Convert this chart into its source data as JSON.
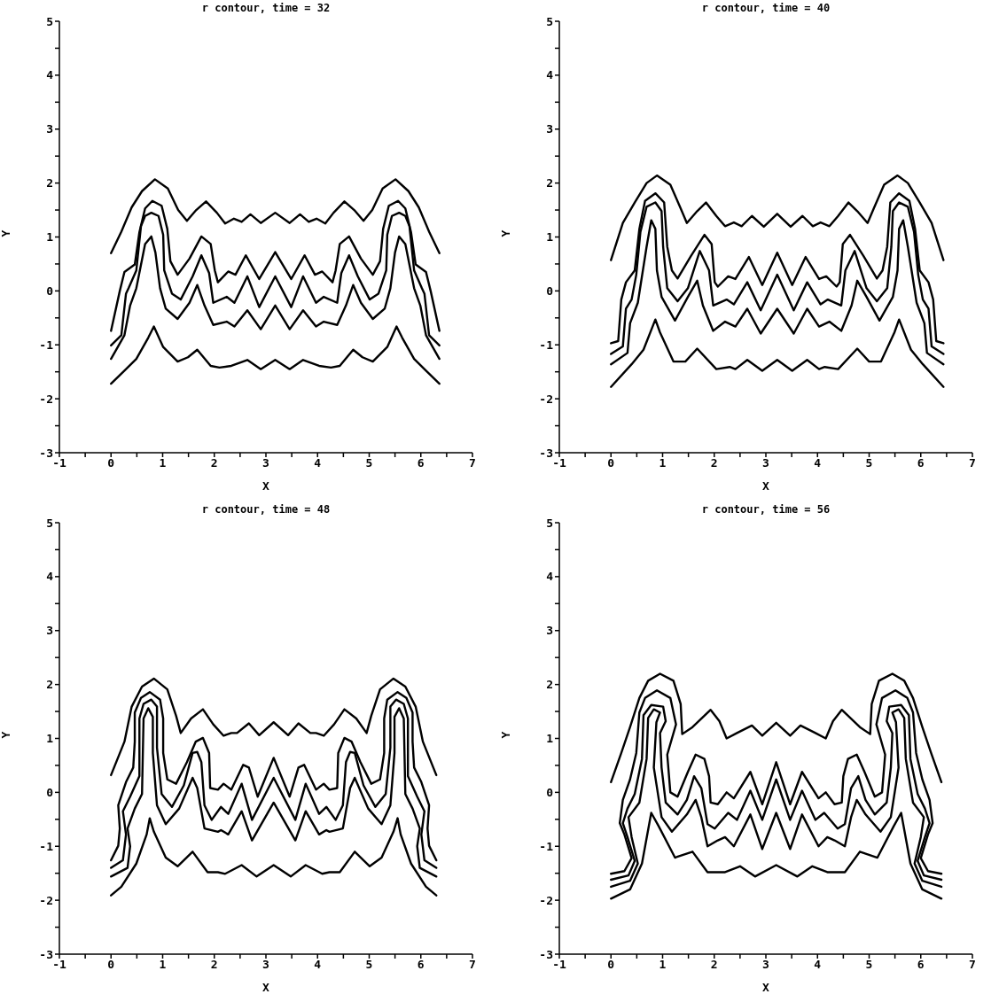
{
  "chart_data": [
    {
      "type": "line",
      "title": "r contour, time = 32",
      "xlabel": "X",
      "ylabel": "Y",
      "xlim": [
        -1,
        7
      ],
      "ylim": [
        -3,
        5
      ],
      "xticks": [
        -1,
        {
          "value": -0.5,
          "label": null
        },
        0,
        {
          "value": 0.5,
          "label": null
        },
        1,
        {
          "value": 1.5,
          "label": null
        },
        2,
        {
          "value": 2.5,
          "label": null
        },
        3,
        {
          "value": 3.5,
          "label": null
        },
        4,
        {
          "value": 4.5,
          "label": null
        },
        5,
        {
          "value": 5.5,
          "label": null
        },
        6,
        {
          "value": 6.5,
          "label": null
        },
        7
      ],
      "yticks": [
        -3,
        {
          "value": -2.5,
          "label": null
        },
        -2,
        {
          "value": -1.5,
          "label": null
        },
        -1,
        {
          "value": -0.5,
          "label": null
        },
        0,
        {
          "value": 0.5,
          "label": null
        },
        1,
        {
          "value": 1.5,
          "label": null
        },
        2,
        {
          "value": 2.5,
          "label": null
        },
        3,
        {
          "value": 3.5,
          "label": null
        },
        4,
        {
          "value": 4.5,
          "label": null
        },
        5
      ],
      "series": [
        {
          "color": "#000000",
          "x": [
            0,
            0.2,
            0.4,
            0.6,
            0.85,
            1.1,
            1.3,
            1.47,
            1.65,
            1.84,
            2.05,
            2.21,
            2.38,
            2.53,
            2.7,
            2.9,
            3.18,
            3.46,
            3.66,
            3.83,
            3.98,
            4.15,
            4.31,
            4.52,
            4.71,
            4.89,
            5.06,
            5.26,
            5.51,
            5.76,
            5.96,
            6.16,
            6.36
          ],
          "values": [
            0.7,
            1.1,
            1.55,
            1.85,
            2.07,
            1.9,
            1.5,
            1.3,
            1.5,
            1.66,
            1.45,
            1.25,
            1.34,
            1.28,
            1.42,
            1.26,
            1.45,
            1.26,
            1.42,
            1.28,
            1.34,
            1.25,
            1.45,
            1.66,
            1.5,
            1.3,
            1.5,
            1.9,
            2.07,
            1.85,
            1.55,
            1.1,
            0.7
          ]
        },
        {
          "color": "#000000",
          "x": [
            0,
            0.17,
            0.26,
            0.46,
            0.55,
            0.66,
            0.8,
            0.98,
            1.09,
            1.15,
            1.29,
            1.52,
            1.75,
            1.93,
            2.01,
            2.07,
            2.27,
            2.41,
            2.61,
            2.87,
            3.18,
            3.49,
            3.75,
            3.95,
            4.09,
            4.29,
            4.35,
            4.43,
            4.61,
            4.84,
            5.07,
            5.21,
            5.27,
            5.38,
            5.56,
            5.7,
            5.81,
            5.9,
            6.1,
            6.19,
            6.36
          ],
          "values": [
            -0.74,
            0,
            0.35,
            0.49,
            1.09,
            1.53,
            1.67,
            1.58,
            1.15,
            0.55,
            0.3,
            0.6,
            1.01,
            0.87,
            0.38,
            0.16,
            0.36,
            0.3,
            0.66,
            0.22,
            0.72,
            0.22,
            0.66,
            0.3,
            0.36,
            0.16,
            0.38,
            0.87,
            1.01,
            0.6,
            0.3,
            0.55,
            1.15,
            1.58,
            1.67,
            1.53,
            1.09,
            0.49,
            0.35,
            0,
            -0.74
          ]
        },
        {
          "color": "#000000",
          "x": [
            0,
            0.2,
            0.29,
            0.34,
            0.49,
            0.58,
            0.66,
            0.78,
            0.92,
            1.01,
            1.03,
            1.18,
            1.35,
            1.58,
            1.75,
            1.9,
            1.98,
            2.24,
            2.39,
            2.64,
            2.87,
            3.18,
            3.49,
            3.72,
            3.97,
            4.12,
            4.38,
            4.46,
            4.61,
            4.78,
            5.01,
            5.18,
            5.33,
            5.35,
            5.44,
            5.58,
            5.7,
            5.78,
            5.87,
            6.02,
            6.07,
            6.16,
            6.36
          ],
          "values": [
            -1.01,
            -0.82,
            -0.05,
            0.05,
            0.38,
            1.2,
            1.39,
            1.45,
            1.39,
            1.04,
            0.38,
            -0.05,
            -0.16,
            0.27,
            0.66,
            0.33,
            -0.22,
            -0.11,
            -0.22,
            0.27,
            -0.3,
            0.27,
            -0.3,
            0.27,
            -0.22,
            -0.11,
            -0.22,
            0.33,
            0.66,
            0.27,
            -0.16,
            -0.05,
            0.38,
            1.04,
            1.39,
            1.45,
            1.39,
            1.2,
            0.38,
            0.05,
            -0.05,
            -0.82,
            -1.01
          ]
        },
        {
          "color": "#000000",
          "x": [
            0,
            0.26,
            0.37,
            0.49,
            0.66,
            0.78,
            0.86,
            0.95,
            1.06,
            1.29,
            1.52,
            1.67,
            1.81,
            1.98,
            2.24,
            2.39,
            2.64,
            2.9,
            3.18,
            3.46,
            3.72,
            3.97,
            4.12,
            4.38,
            4.55,
            4.69,
            4.84,
            5.07,
            5.3,
            5.41,
            5.5,
            5.58,
            5.7,
            5.87,
            5.99,
            6.1,
            6.36
          ],
          "values": [
            -1.26,
            -0.82,
            -0.27,
            0.05,
            0.87,
            1.01,
            0.71,
            0.05,
            -0.33,
            -0.52,
            -0.22,
            0.11,
            -0.27,
            -0.63,
            -0.57,
            -0.66,
            -0.36,
            -0.71,
            -0.27,
            -0.71,
            -0.36,
            -0.66,
            -0.57,
            -0.63,
            -0.27,
            0.11,
            -0.22,
            -0.52,
            -0.33,
            0.05,
            0.71,
            1.01,
            0.87,
            0.05,
            -0.27,
            -0.82,
            -1.26
          ]
        },
        {
          "color": "#000000",
          "x": [
            0,
            0.26,
            0.49,
            0.72,
            0.83,
            1.01,
            1.29,
            1.49,
            1.67,
            1.93,
            2.1,
            2.33,
            2.64,
            2.9,
            3.18,
            3.46,
            3.72,
            4.03,
            4.26,
            4.43,
            4.69,
            4.87,
            5.07,
            5.35,
            5.53,
            5.64,
            5.87,
            6.1,
            6.36
          ],
          "values": [
            -1.72,
            -1.48,
            -1.26,
            -0.87,
            -0.66,
            -1.04,
            -1.31,
            -1.23,
            -1.09,
            -1.39,
            -1.42,
            -1.39,
            -1.28,
            -1.45,
            -1.28,
            -1.45,
            -1.28,
            -1.39,
            -1.42,
            -1.39,
            -1.09,
            -1.23,
            -1.31,
            -1.04,
            -0.66,
            -0.87,
            -1.26,
            -1.48,
            -1.72
          ]
        }
      ]
    },
    {
      "type": "line",
      "title": "r contour, time = 40",
      "xlabel": "X",
      "ylabel": "Y",
      "xlim": [
        -1,
        7
      ],
      "ylim": [
        -3,
        5
      ],
      "xticks": [
        -1,
        {
          "value": -0.5,
          "label": null
        },
        0,
        {
          "value": 0.5,
          "label": null
        },
        1,
        {
          "value": 1.5,
          "label": null
        },
        2,
        {
          "value": 2.5,
          "label": null
        },
        3,
        {
          "value": 3.5,
          "label": null
        },
        4,
        {
          "value": 4.5,
          "label": null
        },
        5,
        {
          "value": 5.5,
          "label": null
        },
        6,
        {
          "value": 6.5,
          "label": null
        },
        7
      ],
      "yticks": [
        -3,
        {
          "value": -2.5,
          "label": null
        },
        -2,
        {
          "value": -1.5,
          "label": null
        },
        -1,
        {
          "value": -0.5,
          "label": null
        },
        0,
        {
          "value": 0.5,
          "label": null
        },
        1,
        {
          "value": 1.5,
          "label": null
        },
        2,
        {
          "value": 2.5,
          "label": null
        },
        3,
        {
          "value": 3.5,
          "label": null
        },
        4,
        {
          "value": 4.5,
          "label": null
        },
        5
      ],
      "series": [
        {
          "color": "#000000",
          "x": [
            0,
            0.23,
            0.46,
            0.69,
            0.89,
            1.15,
            1.35,
            1.47,
            1.67,
            1.84,
            2.04,
            2.21,
            2.38,
            2.53,
            2.73,
            2.96,
            3.22,
            3.48,
            3.71,
            3.91,
            4.06,
            4.23,
            4.4,
            4.6,
            4.77,
            4.97,
            5.09,
            5.29,
            5.55,
            5.75,
            5.98,
            6.21,
            6.44
          ],
          "values": [
            0.57,
            1.26,
            1.64,
            2,
            2.14,
            1.97,
            1.53,
            1.26,
            1.48,
            1.64,
            1.39,
            1.2,
            1.27,
            1.2,
            1.39,
            1.19,
            1.43,
            1.19,
            1.39,
            1.2,
            1.27,
            1.2,
            1.39,
            1.64,
            1.48,
            1.26,
            1.53,
            1.97,
            2.14,
            2,
            1.64,
            1.26,
            0.57
          ]
        },
        {
          "color": "#000000",
          "x": [
            0,
            0.14,
            0.2,
            0.29,
            0.46,
            0.55,
            0.66,
            0.86,
            1.03,
            1.09,
            1.18,
            1.29,
            1.55,
            1.81,
            1.95,
            2.01,
            2.07,
            2.27,
            2.41,
            2.67,
            2.93,
            3.22,
            3.51,
            3.77,
            4.03,
            4.17,
            4.37,
            4.43,
            4.49,
            4.63,
            4.89,
            5.15,
            5.26,
            5.35,
            5.41,
            5.58,
            5.78,
            5.89,
            5.98,
            6.15,
            6.24,
            6.3,
            6.44
          ],
          "values": [
            -0.97,
            -0.93,
            -0.16,
            0.16,
            0.38,
            1.15,
            1.67,
            1.81,
            1.64,
            0.82,
            0.38,
            0.23,
            0.65,
            1.04,
            0.87,
            0.16,
            0.08,
            0.27,
            0.22,
            0.63,
            0.11,
            0.71,
            0.11,
            0.63,
            0.22,
            0.27,
            0.08,
            0.16,
            0.87,
            1.04,
            0.65,
            0.23,
            0.38,
            0.82,
            1.64,
            1.81,
            1.67,
            1.15,
            0.38,
            0.16,
            -0.16,
            -0.93,
            -0.97
          ]
        },
        {
          "color": "#000000",
          "x": [
            0,
            0.23,
            0.29,
            0.4,
            0.49,
            0.57,
            0.69,
            0.86,
            0.98,
            1.01,
            1.09,
            1.29,
            1.49,
            1.72,
            1.9,
            1.98,
            2.24,
            2.38,
            2.64,
            2.9,
            3.22,
            3.54,
            3.8,
            4.06,
            4.2,
            4.46,
            4.54,
            4.72,
            4.95,
            5.15,
            5.35,
            5.43,
            5.46,
            5.58,
            5.75,
            5.87,
            5.95,
            6.04,
            6.15,
            6.21,
            6.44
          ],
          "values": [
            -1.17,
            -1.03,
            -0.33,
            -0.16,
            0.3,
            1.09,
            1.56,
            1.64,
            1.48,
            0.82,
            0.05,
            -0.19,
            0.05,
            0.74,
            0.38,
            -0.27,
            -0.16,
            -0.25,
            0.16,
            -0.36,
            0.3,
            -0.36,
            0.16,
            -0.25,
            -0.16,
            -0.27,
            0.38,
            0.74,
            0.05,
            -0.19,
            0.05,
            0.82,
            1.48,
            1.64,
            1.56,
            1.09,
            0.3,
            -0.16,
            -0.33,
            -1.03,
            -1.17
          ]
        },
        {
          "color": "#000000",
          "x": [
            0,
            0.32,
            0.37,
            0.52,
            0.69,
            0.78,
            0.86,
            0.89,
            0.98,
            1.24,
            1.49,
            1.67,
            1.78,
            1.98,
            2.21,
            2.41,
            2.64,
            2.9,
            3.22,
            3.54,
            3.8,
            4.03,
            4.23,
            4.46,
            4.66,
            4.77,
            4.95,
            5.2,
            5.46,
            5.55,
            5.58,
            5.66,
            5.75,
            5.92,
            6.07,
            6.12,
            6.44
          ],
          "values": [
            -1.36,
            -1.15,
            -0.6,
            -0.22,
            0.82,
            1.31,
            1.15,
            0.38,
            -0.11,
            -0.55,
            -0.11,
            0.19,
            -0.27,
            -0.74,
            -0.57,
            -0.66,
            -0.33,
            -0.79,
            -0.33,
            -0.79,
            -0.33,
            -0.66,
            -0.57,
            -0.74,
            -0.27,
            0.19,
            -0.11,
            -0.55,
            -0.11,
            0.38,
            1.15,
            1.31,
            0.82,
            -0.22,
            -0.6,
            -1.15,
            -1.36
          ]
        },
        {
          "color": "#000000",
          "x": [
            0,
            0.4,
            0.63,
            0.86,
            0.95,
            1.21,
            1.44,
            1.67,
            2.04,
            2.3,
            2.41,
            2.64,
            2.93,
            3.22,
            3.51,
            3.8,
            4.03,
            4.14,
            4.4,
            4.77,
            5,
            5.23,
            5.49,
            5.58,
            5.81,
            6.04,
            6.44
          ],
          "values": [
            -1.78,
            -1.36,
            -1.09,
            -0.53,
            -0.77,
            -1.31,
            -1.31,
            -1.07,
            -1.45,
            -1.41,
            -1.45,
            -1.28,
            -1.48,
            -1.28,
            -1.48,
            -1.28,
            -1.45,
            -1.41,
            -1.45,
            -1.07,
            -1.31,
            -1.31,
            -0.77,
            -0.53,
            -1.09,
            -1.36,
            -1.78
          ]
        }
      ]
    },
    {
      "type": "line",
      "title": "r contour, time = 48",
      "xlabel": "X",
      "ylabel": "Y",
      "xlim": [
        -1,
        7
      ],
      "ylim": [
        -3,
        5
      ],
      "xticks": [
        -1,
        {
          "value": -0.5,
          "label": null
        },
        0,
        {
          "value": 0.5,
          "label": null
        },
        1,
        {
          "value": 1.5,
          "label": null
        },
        2,
        {
          "value": 2.5,
          "label": null
        },
        3,
        {
          "value": 3.5,
          "label": null
        },
        4,
        {
          "value": 4.5,
          "label": null
        },
        5,
        {
          "value": 5.5,
          "label": null
        },
        6,
        {
          "value": 6.5,
          "label": null
        },
        7
      ],
      "yticks": [
        -3,
        {
          "value": -2.5,
          "label": null
        },
        -2,
        {
          "value": -1.5,
          "label": null
        },
        -1,
        {
          "value": -0.5,
          "label": null
        },
        0,
        {
          "value": 0.5,
          "label": null
        },
        1,
        {
          "value": 1.5,
          "label": null
        },
        2,
        {
          "value": 2.5,
          "label": null
        },
        3,
        {
          "value": 3.5,
          "label": null
        },
        4,
        {
          "value": 4.5,
          "label": null
        },
        5
      ],
      "series": [
        {
          "color": "#000000",
          "x": [
            0,
            0.26,
            0.4,
            0.6,
            0.83,
            1.09,
            1.26,
            1.35,
            1.55,
            1.78,
            1.98,
            2.18,
            2.33,
            2.44,
            2.67,
            2.87,
            3.15,
            3.43,
            3.63,
            3.86,
            3.97,
            4.12,
            4.32,
            4.52,
            4.75,
            4.95,
            5.04,
            5.21,
            5.47,
            5.7,
            5.9,
            6.04,
            6.3
          ],
          "values": [
            0.32,
            0.94,
            1.59,
            1.96,
            2.11,
            1.91,
            1.42,
            1.1,
            1.37,
            1.54,
            1.26,
            1.05,
            1.1,
            1.1,
            1.28,
            1.06,
            1.3,
            1.06,
            1.28,
            1.1,
            1.1,
            1.05,
            1.26,
            1.54,
            1.37,
            1.1,
            1.42,
            1.91,
            2.11,
            1.96,
            1.59,
            0.94,
            0.32
          ]
        },
        {
          "color": "#000000",
          "x": [
            0,
            0.14,
            0.17,
            0.14,
            0.29,
            0.43,
            0.46,
            0.46,
            0.58,
            0.75,
            0.95,
            1.01,
            1.01,
            1.09,
            1.26,
            1.47,
            1.64,
            1.78,
            1.9,
            1.92,
            2.07,
            2.18,
            2.33,
            2.56,
            2.67,
            2.84,
            3.15,
            3.46,
            3.63,
            3.74,
            3.97,
            4.12,
            4.23,
            4.38,
            4.4,
            4.52,
            4.66,
            4.83,
            5.04,
            5.21,
            5.29,
            5.29,
            5.35,
            5.55,
            5.72,
            5.84,
            5.84,
            5.87,
            6.01,
            6.16,
            6.13,
            6.16,
            6.3
          ],
          "values": [
            -1.26,
            -0.99,
            -0.67,
            -0.24,
            0.19,
            0.46,
            0.94,
            1.48,
            1.75,
            1.86,
            1.72,
            1.37,
            0.73,
            0.24,
            0.16,
            0.56,
            0.94,
            1.01,
            0.73,
            0.08,
            0.05,
            0.16,
            0.05,
            0.51,
            0.46,
            -0.08,
            0.64,
            -0.08,
            0.46,
            0.51,
            0.05,
            0.16,
            0.05,
            0.08,
            0.73,
            1.01,
            0.94,
            0.56,
            0.16,
            0.24,
            0.73,
            1.37,
            1.72,
            1.86,
            1.75,
            1.48,
            0.94,
            0.46,
            0.19,
            -0.24,
            -0.67,
            -0.99,
            -1.26
          ]
        },
        {
          "color": "#000000",
          "x": [
            0,
            0.23,
            0.29,
            0.23,
            0.37,
            0.55,
            0.55,
            0.63,
            0.78,
            0.89,
            0.89,
            0.98,
            1.18,
            1.41,
            1.58,
            1.67,
            1.75,
            1.81,
            1.95,
            2.13,
            2.27,
            2.53,
            2.73,
            3.15,
            3.57,
            3.77,
            4.03,
            4.17,
            4.35,
            4.49,
            4.55,
            4.63,
            4.72,
            4.89,
            5.12,
            5.32,
            5.41,
            5.41,
            5.52,
            5.67,
            5.75,
            5.75,
            5.93,
            6.07,
            6.01,
            6.07,
            6.3
          ],
          "values": [
            -1.4,
            -1.26,
            -0.78,
            -0.35,
            -0.08,
            0.3,
            1.37,
            1.64,
            1.72,
            1.59,
            0.83,
            -0.03,
            -0.27,
            0.13,
            0.73,
            0.75,
            0.56,
            -0.24,
            -0.51,
            -0.27,
            -0.4,
            0.16,
            -0.51,
            0.27,
            -0.51,
            0.16,
            -0.4,
            -0.27,
            -0.51,
            -0.24,
            0.56,
            0.75,
            0.73,
            0.13,
            -0.27,
            -0.03,
            0.83,
            1.59,
            1.72,
            1.64,
            1.37,
            0.3,
            -0.08,
            -0.35,
            -0.78,
            -1.26,
            -1.4
          ]
        },
        {
          "color": "#000000",
          "x": [
            0,
            0.32,
            0.37,
            0.32,
            0.46,
            0.6,
            0.63,
            0.72,
            0.81,
            0.81,
            0.89,
            1.06,
            1.32,
            1.58,
            1.67,
            1.81,
            2.07,
            2.13,
            2.27,
            2.53,
            2.73,
            3.15,
            3.57,
            3.77,
            4.03,
            4.17,
            4.23,
            4.49,
            4.63,
            4.72,
            4.98,
            5.24,
            5.41,
            5.49,
            5.49,
            5.58,
            5.67,
            5.7,
            5.84,
            5.98,
            5.93,
            5.98,
            6.3
          ],
          "values": [
            -1.56,
            -1.4,
            -1,
            -0.67,
            -0.3,
            -0.03,
            1.37,
            1.56,
            1.4,
            0.73,
            -0.24,
            -0.59,
            -0.3,
            0.27,
            0.08,
            -0.67,
            -0.73,
            -0.7,
            -0.78,
            -0.35,
            -0.89,
            -0.19,
            -0.89,
            -0.35,
            -0.78,
            -0.7,
            -0.73,
            -0.67,
            0.08,
            0.27,
            -0.3,
            -0.59,
            -0.24,
            0.73,
            1.4,
            1.56,
            1.37,
            -0.03,
            -0.3,
            -0.67,
            -1,
            -1.4,
            -1.56
          ]
        },
        {
          "color": "#000000",
          "x": [
            0,
            0.2,
            0.49,
            0.69,
            0.75,
            0.83,
            1.06,
            1.29,
            1.58,
            1.87,
            2.07,
            2.21,
            2.53,
            2.82,
            3.15,
            3.48,
            3.77,
            4.09,
            4.23,
            4.43,
            4.72,
            5.01,
            5.24,
            5.47,
            5.55,
            5.61,
            5.81,
            6.1,
            6.3
          ],
          "values": [
            -1.91,
            -1.75,
            -1.32,
            -0.78,
            -0.48,
            -0.73,
            -1.21,
            -1.37,
            -1.1,
            -1.48,
            -1.48,
            -1.51,
            -1.35,
            -1.56,
            -1.35,
            -1.56,
            -1.35,
            -1.51,
            -1.48,
            -1.48,
            -1.1,
            -1.37,
            -1.21,
            -0.73,
            -0.48,
            -0.78,
            -1.32,
            -1.75,
            -1.91
          ]
        }
      ]
    },
    {
      "type": "line",
      "title": "r contour, time = 56",
      "xlabel": "X",
      "ylabel": "Y",
      "xlim": [
        -1,
        7
      ],
      "ylim": [
        -3,
        5
      ],
      "xticks": [
        -1,
        {
          "value": -0.5,
          "label": null
        },
        0,
        {
          "value": 0.5,
          "label": null
        },
        1,
        {
          "value": 1.5,
          "label": null
        },
        2,
        {
          "value": 2.5,
          "label": null
        },
        3,
        {
          "value": 3.5,
          "label": null
        },
        4,
        {
          "value": 4.5,
          "label": null
        },
        5,
        {
          "value": 5.5,
          "label": null
        },
        6,
        {
          "value": 6.5,
          "label": null
        },
        7
      ],
      "yticks": [
        -3,
        {
          "value": -2.5,
          "label": null
        },
        -2,
        {
          "value": -1.5,
          "label": null
        },
        -1,
        {
          "value": -0.5,
          "label": null
        },
        0,
        {
          "value": 0.5,
          "label": null
        },
        1,
        {
          "value": 1.5,
          "label": null
        },
        2,
        {
          "value": 2.5,
          "label": null
        },
        3,
        {
          "value": 3.5,
          "label": null
        },
        4,
        {
          "value": 4.5,
          "label": null
        },
        5
      ],
      "series": [
        {
          "color": "#000000",
          "x": [
            0,
            0.2,
            0.37,
            0.55,
            0.72,
            0.95,
            1.21,
            1.35,
            1.38,
            1.58,
            1.93,
            2.1,
            2.24,
            2.44,
            2.73,
            2.93,
            3.2,
            3.47,
            3.67,
            3.96,
            4.16,
            4.3,
            4.47,
            4.82,
            5.02,
            5.05,
            5.19,
            5.45,
            5.68,
            5.85,
            6.03,
            6.2,
            6.4
          ],
          "values": [
            0.19,
            0.73,
            1.21,
            1.75,
            2.07,
            2.2,
            2.07,
            1.64,
            1.08,
            1.21,
            1.53,
            1.32,
            1,
            1.1,
            1.24,
            1.05,
            1.29,
            1.05,
            1.24,
            1.1,
            1,
            1.32,
            1.53,
            1.21,
            1.08,
            1.64,
            2.07,
            2.2,
            2.07,
            1.75,
            1.21,
            0.73,
            0.19
          ]
        },
        {
          "color": "#000000",
          "x": [
            0,
            0.26,
            0.4,
            0.26,
            0.17,
            0.23,
            0.37,
            0.49,
            0.55,
            0.66,
            0.89,
            1.15,
            1.26,
            1.09,
            1.15,
            1.29,
            1.49,
            1.64,
            1.81,
            1.9,
            1.93,
            2.07,
            2.24,
            2.38,
            2.7,
            2.93,
            3.2,
            3.47,
            3.7,
            4.02,
            4.16,
            4.33,
            4.47,
            4.5,
            4.59,
            4.76,
            4.91,
            5.11,
            5.25,
            5.31,
            5.14,
            5.25,
            5.51,
            5.74,
            5.85,
            5.91,
            6.03,
            6.17,
            6.23,
            6.14,
            6,
            6.14,
            6.4
          ],
          "values": [
            -1.51,
            -1.46,
            -1.22,
            -0.78,
            -0.57,
            -0.14,
            0.24,
            0.73,
            1.48,
            1.75,
            1.89,
            1.75,
            1.26,
            0.7,
            0,
            -0.08,
            0.38,
            0.7,
            0.62,
            0.3,
            -0.19,
            -0.22,
            0,
            -0.11,
            0.38,
            -0.22,
            0.56,
            -0.22,
            0.38,
            -0.11,
            0,
            -0.22,
            -0.19,
            0.3,
            0.62,
            0.7,
            0.38,
            -0.08,
            0,
            0.7,
            1.26,
            1.75,
            1.89,
            1.75,
            1.48,
            0.73,
            0.24,
            -0.14,
            -0.57,
            -0.78,
            -1.22,
            -1.46,
            -1.51
          ]
        },
        {
          "color": "#000000",
          "x": [
            0,
            0.34,
            0.46,
            0.32,
            0.23,
            0.32,
            0.46,
            0.6,
            0.63,
            0.78,
            1.01,
            1.06,
            0.95,
            0.98,
            1.06,
            1.29,
            1.47,
            1.61,
            1.75,
            1.87,
            2.01,
            2.27,
            2.44,
            2.7,
            2.93,
            3.2,
            3.47,
            3.7,
            3.96,
            4.13,
            4.39,
            4.53,
            4.65,
            4.79,
            4.93,
            5.11,
            5.34,
            5.42,
            5.45,
            5.34,
            5.39,
            5.62,
            5.77,
            5.8,
            5.94,
            6.08,
            6.17,
            6.08,
            5.94,
            6.06,
            6.4
          ],
          "values": [
            -1.62,
            -1.54,
            -1.27,
            -0.83,
            -0.57,
            -0.3,
            -0.03,
            0.62,
            1.43,
            1.62,
            1.59,
            1.32,
            1.1,
            0.46,
            -0.19,
            -0.41,
            -0.14,
            0.3,
            0.08,
            -0.59,
            -0.67,
            -0.38,
            -0.51,
            0.03,
            -0.51,
            0.24,
            -0.51,
            0.03,
            -0.51,
            -0.38,
            -0.67,
            -0.59,
            0.08,
            0.3,
            -0.14,
            -0.41,
            -0.19,
            0.46,
            1.1,
            1.32,
            1.59,
            1.62,
            1.43,
            0.62,
            -0.03,
            -0.3,
            -0.57,
            -0.83,
            -1.27,
            -1.54,
            -1.62
          ]
        },
        {
          "color": "#000000",
          "x": [
            0,
            0.37,
            0.52,
            0.4,
            0.34,
            0.55,
            0.69,
            0.72,
            0.83,
            0.95,
            0.88,
            0.83,
            0.98,
            1.18,
            1.47,
            1.64,
            1.75,
            1.87,
            2.07,
            2.21,
            2.38,
            2.7,
            2.93,
            3.2,
            3.47,
            3.7,
            4.02,
            4.19,
            4.33,
            4.53,
            4.65,
            4.76,
            4.93,
            5.22,
            5.42,
            5.57,
            5.52,
            5.45,
            5.57,
            5.68,
            5.71,
            5.85,
            6.06,
            6,
            5.88,
            6.03,
            6.4
          ],
          "values": [
            -1.75,
            -1.64,
            -1.32,
            -0.83,
            -0.46,
            -0.19,
            0.62,
            1.38,
            1.54,
            1.48,
            1.3,
            0.46,
            -0.46,
            -0.73,
            -0.41,
            -0.14,
            -0.46,
            -1,
            -0.89,
            -0.83,
            -1,
            -0.41,
            -1.05,
            -0.38,
            -1.05,
            -0.41,
            -1,
            -0.83,
            -0.89,
            -1,
            -0.46,
            -0.14,
            -0.41,
            -0.73,
            -0.46,
            0.46,
            1.3,
            1.48,
            1.54,
            1.38,
            0.62,
            -0.19,
            -0.46,
            -0.83,
            -1.32,
            -1.64,
            -1.75
          ]
        },
        {
          "color": "#000000",
          "x": [
            0,
            0.37,
            0.6,
            0.78,
            0.92,
            1.24,
            1.58,
            1.87,
            2.21,
            2.5,
            2.79,
            3.2,
            3.61,
            3.9,
            4.19,
            4.53,
            4.82,
            5.16,
            5.48,
            5.62,
            5.8,
            6.03,
            6.4
          ],
          "values": [
            -1.97,
            -1.8,
            -1.32,
            -0.38,
            -0.62,
            -1.21,
            -1.1,
            -1.48,
            -1.48,
            -1.37,
            -1.56,
            -1.35,
            -1.56,
            -1.37,
            -1.48,
            -1.48,
            -1.1,
            -1.21,
            -0.62,
            -0.38,
            -1.32,
            -1.8,
            -1.97
          ]
        }
      ]
    }
  ]
}
